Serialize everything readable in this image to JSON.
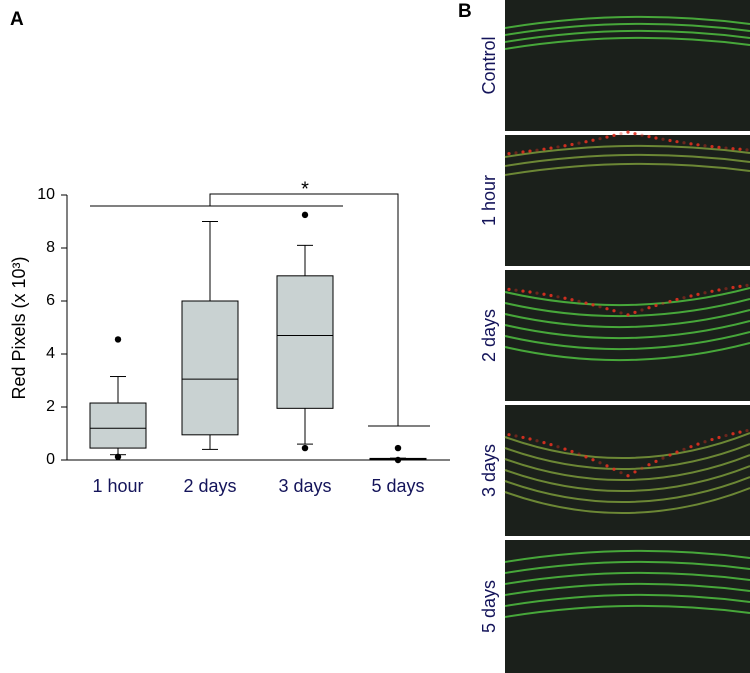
{
  "chart_data": {
    "type": "box",
    "y_label": "Red Pixels (x 10³)",
    "annotation": "*",
    "categories": [
      "1 hour",
      "2 days",
      "3 days",
      "5 days"
    ],
    "color": "#c9d2d2",
    "boxes": [
      {
        "whisker_low": 0.2,
        "q1": 0.45,
        "median": 1.2,
        "q3": 2.15,
        "whisker_high": 3.15,
        "outliers": [
          4.55,
          0.12
        ]
      },
      {
        "whisker_low": 0.4,
        "q1": 0.95,
        "median": 3.05,
        "q3": 6.0,
        "whisker_high": 9.0,
        "outliers": []
      },
      {
        "whisker_low": 0.6,
        "q1": 1.95,
        "median": 4.7,
        "q3": 6.95,
        "whisker_high": 8.1,
        "outliers": [
          9.25,
          0.45
        ]
      },
      {
        "whisker_low": 0.03,
        "q1": 0.04,
        "median": 0.05,
        "q3": 0.06,
        "whisker_high": 0.07,
        "outliers": [
          0.45,
          0.0
        ]
      }
    ],
    "ylim": [
      0,
      10
    ],
    "yticks": [
      0,
      2,
      4,
      6,
      8,
      10
    ]
  },
  "panel_labels": [
    "A",
    "B"
  ],
  "micrographs": [
    "Control",
    "1 hour",
    "2 days",
    "3 days",
    "5 days"
  ]
}
